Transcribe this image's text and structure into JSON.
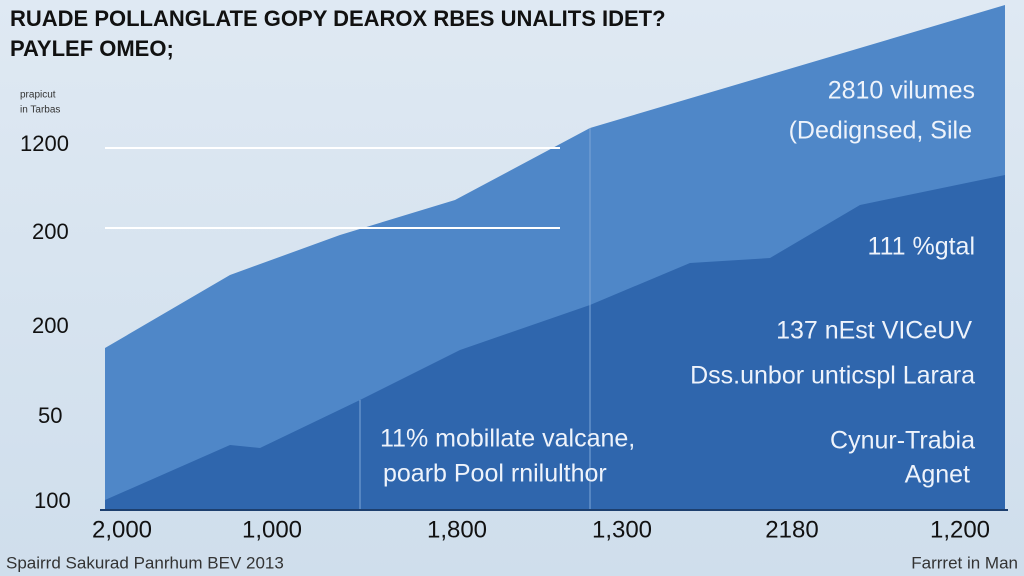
{
  "header": {
    "title_lines": [
      "RUADE POLLANGLATE GOPY DEAROX RBES UNALITS IDET?",
      "PAYLEF OMEO;"
    ]
  },
  "axis": {
    "label_lines": [
      "prapicut",
      "in Tarbas"
    ],
    "y_labels": [
      "1200",
      "200",
      "200",
      "50",
      "100"
    ],
    "x_labels": [
      "2,000",
      "1,000",
      "1,800",
      "1,300",
      "2180",
      "1,200"
    ]
  },
  "annotations": [
    "2810 vilumes",
    "(Dedignsed, Sile",
    "111 %gtal",
    "137 nEst VICeUV",
    "Dss.unbor unticspl Larara",
    "Cynur-Trabia",
    "Agnet",
    "11% mobillate valcane,",
    "poarb Pool rnilulthor"
  ],
  "footer": {
    "left": "Spairrd Sakurad Panrhum BEV 2013",
    "right": "Farrret in Man"
  }
}
